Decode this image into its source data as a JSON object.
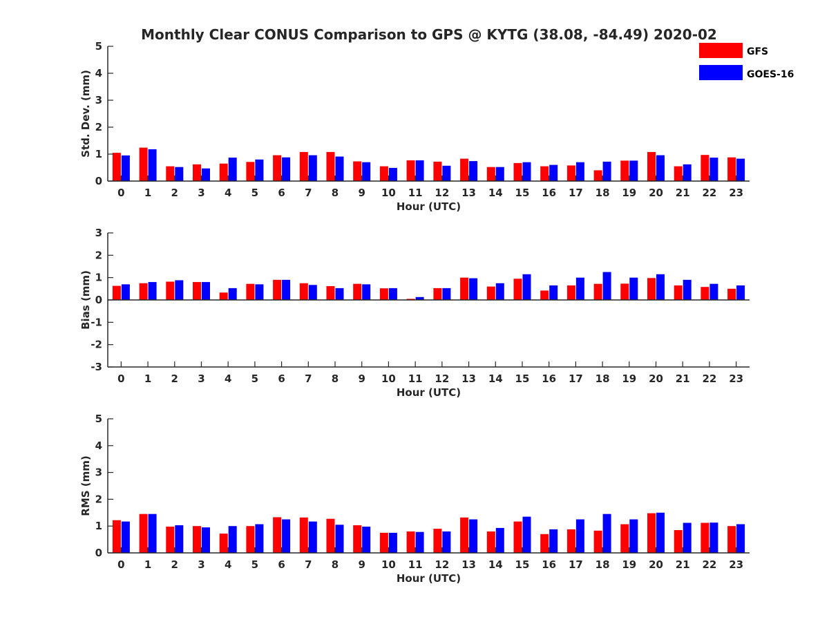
{
  "title": "Monthly Clear CONUS Comparison to GPS @ KYTG (38.08, -84.49) 2020-02",
  "legend": [
    {
      "name": "GFS",
      "color": "#ff0000"
    },
    {
      "name": "GOES-16",
      "color": "#0000ff"
    }
  ],
  "chart_data": [
    {
      "type": "bar",
      "ylabel": "Std. Dev. (mm)",
      "xlabel": "Hour (UTC)",
      "ylim": [
        0,
        5
      ],
      "yticks": [
        0,
        1,
        2,
        3,
        4,
        5
      ],
      "categories": [
        "0",
        "1",
        "2",
        "3",
        "4",
        "5",
        "6",
        "7",
        "8",
        "9",
        "10",
        "11",
        "12",
        "13",
        "14",
        "15",
        "16",
        "17",
        "18",
        "19",
        "20",
        "21",
        "22",
        "23"
      ],
      "series": [
        {
          "name": "GFS",
          "values": [
            1.05,
            1.24,
            0.55,
            0.62,
            0.65,
            0.71,
            0.96,
            1.08,
            1.08,
            0.73,
            0.55,
            0.77,
            0.72,
            0.83,
            0.52,
            0.67,
            0.55,
            0.58,
            0.4,
            0.76,
            1.08,
            0.55,
            0.97,
            0.88
          ]
        },
        {
          "name": "GOES-16",
          "values": [
            0.95,
            1.18,
            0.52,
            0.47,
            0.87,
            0.8,
            0.88,
            0.96,
            0.91,
            0.7,
            0.49,
            0.77,
            0.57,
            0.74,
            0.52,
            0.7,
            0.6,
            0.7,
            0.72,
            0.76,
            0.96,
            0.62,
            0.87,
            0.83
          ]
        }
      ]
    },
    {
      "type": "bar",
      "ylabel": "Bias (mm)",
      "xlabel": "Hour (UTC)",
      "ylim": [
        -3,
        3
      ],
      "yticks": [
        -3,
        -2,
        -1,
        0,
        1,
        2,
        3
      ],
      "categories": [
        "0",
        "1",
        "2",
        "3",
        "4",
        "5",
        "6",
        "7",
        "8",
        "9",
        "10",
        "11",
        "12",
        "13",
        "14",
        "15",
        "16",
        "17",
        "18",
        "19",
        "20",
        "21",
        "22",
        "23"
      ],
      "series": [
        {
          "name": "GFS",
          "values": [
            0.63,
            0.75,
            0.82,
            0.8,
            0.33,
            0.72,
            0.9,
            0.75,
            0.62,
            0.72,
            0.52,
            0.05,
            0.53,
            1.0,
            0.6,
            0.95,
            0.42,
            0.65,
            0.72,
            0.73,
            0.98,
            0.65,
            0.58,
            0.5
          ]
        },
        {
          "name": "GOES-16",
          "values": [
            0.7,
            0.8,
            0.88,
            0.8,
            0.53,
            0.7,
            0.9,
            0.67,
            0.53,
            0.7,
            0.53,
            0.13,
            0.53,
            0.97,
            0.75,
            1.15,
            0.65,
            1.0,
            1.25,
            1.0,
            1.15,
            0.9,
            0.72,
            0.65
          ]
        }
      ]
    },
    {
      "type": "bar",
      "ylabel": "RMS (mm)",
      "xlabel": "Hour (UTC)",
      "ylim": [
        0,
        5
      ],
      "yticks": [
        0,
        1,
        2,
        3,
        4,
        5
      ],
      "categories": [
        "0",
        "1",
        "2",
        "3",
        "4",
        "5",
        "6",
        "7",
        "8",
        "9",
        "10",
        "11",
        "12",
        "13",
        "14",
        "15",
        "16",
        "17",
        "18",
        "19",
        "20",
        "21",
        "22",
        "23"
      ],
      "series": [
        {
          "name": "GFS",
          "values": [
            1.22,
            1.45,
            0.98,
            1.0,
            0.72,
            1.0,
            1.33,
            1.32,
            1.27,
            1.03,
            0.75,
            0.8,
            0.9,
            1.32,
            0.8,
            1.17,
            0.7,
            0.88,
            0.83,
            1.07,
            1.48,
            0.85,
            1.12,
            1.0
          ]
        },
        {
          "name": "GOES-16",
          "values": [
            1.17,
            1.45,
            1.03,
            0.95,
            1.0,
            1.07,
            1.25,
            1.17,
            1.05,
            0.98,
            0.75,
            0.78,
            0.8,
            1.25,
            0.93,
            1.35,
            0.88,
            1.25,
            1.45,
            1.25,
            1.5,
            1.12,
            1.13,
            1.07
          ]
        }
      ]
    }
  ]
}
